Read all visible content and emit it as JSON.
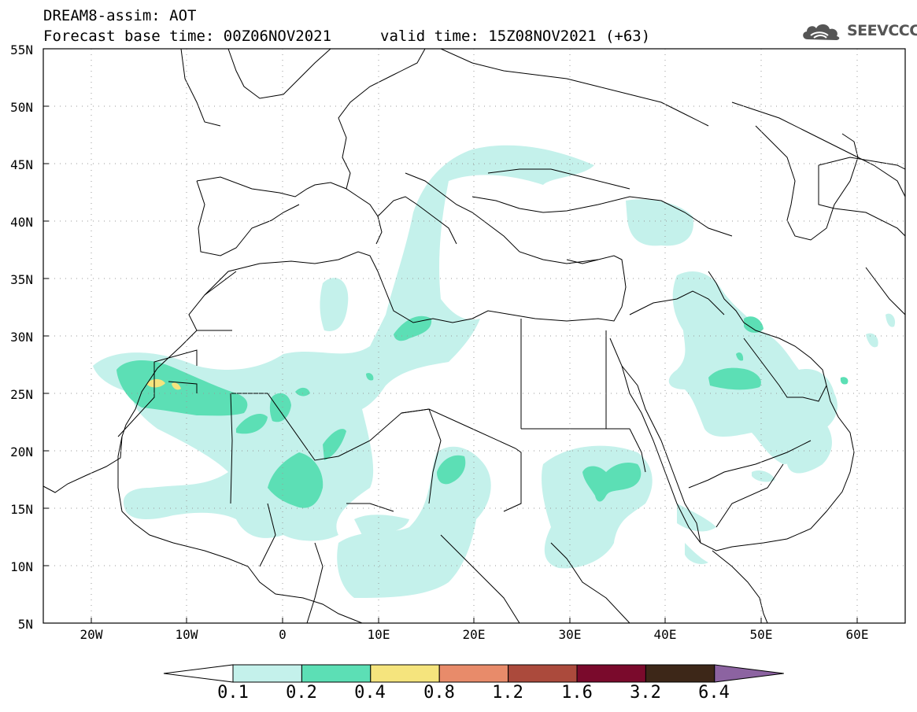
{
  "header": {
    "title_line1": "DREAM8-assim: AOT",
    "title_line2": "Forecast base time: 00Z06NOV2021",
    "valid_time": "valid time: 15Z08NOV2021 (+63)",
    "logo_text": "SEEVCCC",
    "logo_icon": "cloud-icon"
  },
  "map": {
    "lat_labels": [
      "55N",
      "50N",
      "45N",
      "40N",
      "35N",
      "30N",
      "25N",
      "20N",
      "15N",
      "10N",
      "5N"
    ],
    "lon_labels": [
      "20W",
      "10W",
      "0",
      "10E",
      "20E",
      "30E",
      "40E",
      "50E",
      "60E"
    ],
    "lat_range": [
      5,
      55
    ],
    "lon_range": [
      -25,
      65
    ],
    "grid": "dotted"
  },
  "colorbar": {
    "labels": [
      "0.1",
      "0.2",
      "0.4",
      "0.8",
      "1.2",
      "1.6",
      "3.2",
      "6.4"
    ],
    "colors": [
      "#ffffff",
      "#c4f1eb",
      "#5cdfb5",
      "#f5e47d",
      "#e88b6a",
      "#ab4a3c",
      "#7a0a2c",
      "#3d2718",
      "#8c63a1"
    ]
  }
}
